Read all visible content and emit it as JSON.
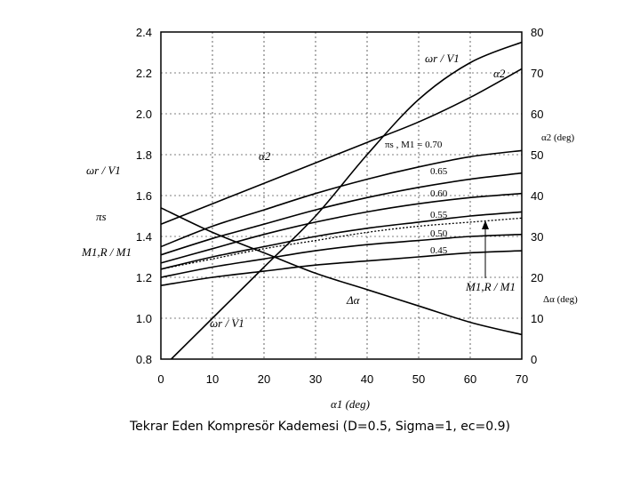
{
  "caption": "Tekrar Eden Kompresör Kademesi (D=0.5, Sigma=1, ec=0.9)",
  "chart_data": {
    "type": "line",
    "xlabel": "α1 (deg)",
    "x_ticks": [
      0,
      10,
      20,
      30,
      40,
      50,
      60,
      70
    ],
    "xlim": [
      0,
      70
    ],
    "left_axis": {
      "labels": [
        "ωr / V1",
        "πs",
        "M1,R / M1"
      ],
      "ticks": [
        "0.8",
        "1.0",
        "1.2",
        "1.4",
        "1.6",
        "1.8",
        "2.0",
        "2.2",
        "2.4"
      ],
      "lim": [
        0.8,
        2.4
      ]
    },
    "right_axis": {
      "ticks": [
        "0",
        "10",
        "20",
        "30",
        "40",
        "50",
        "60",
        "70",
        "80"
      ],
      "lim": [
        0,
        80
      ],
      "labels": [
        "α2 (deg)",
        "Δα (deg)"
      ]
    },
    "series": [
      {
        "name": "ωr / V1",
        "axis": "left",
        "x": [
          2,
          10,
          20,
          30,
          40,
          50,
          60,
          70
        ],
        "y": [
          0.8,
          1.0,
          1.25,
          1.5,
          1.8,
          2.07,
          2.25,
          2.35
        ]
      },
      {
        "name": "α2",
        "axis": "right",
        "x": [
          0,
          10,
          20,
          30,
          40,
          50,
          60,
          70
        ],
        "y": [
          33,
          38,
          43,
          48,
          53,
          58,
          64,
          71
        ]
      },
      {
        "name": "Δα",
        "axis": "right",
        "x": [
          0,
          10,
          20,
          30,
          40,
          50,
          60,
          70
        ],
        "y": [
          37,
          31,
          26,
          21,
          17,
          13,
          9,
          6
        ]
      },
      {
        "label": "0.70",
        "axis": "left",
        "x": [
          0,
          10,
          20,
          30,
          40,
          50,
          60,
          70
        ],
        "y": [
          1.35,
          1.45,
          1.53,
          1.61,
          1.68,
          1.74,
          1.79,
          1.82
        ]
      },
      {
        "label": "0.65",
        "axis": "left",
        "x": [
          0,
          10,
          20,
          30,
          40,
          50,
          60,
          70
        ],
        "y": [
          1.31,
          1.39,
          1.46,
          1.53,
          1.59,
          1.64,
          1.68,
          1.71
        ]
      },
      {
        "label": "0.60",
        "axis": "left",
        "x": [
          0,
          10,
          20,
          30,
          40,
          50,
          60,
          70
        ],
        "y": [
          1.27,
          1.34,
          1.41,
          1.47,
          1.52,
          1.56,
          1.59,
          1.61
        ]
      },
      {
        "label": "0.55",
        "axis": "left",
        "x": [
          0,
          10,
          20,
          30,
          40,
          50,
          60,
          70
        ],
        "y": [
          1.24,
          1.3,
          1.35,
          1.4,
          1.44,
          1.47,
          1.5,
          1.52
        ]
      },
      {
        "label": "0.50",
        "axis": "left",
        "x": [
          0,
          10,
          20,
          30,
          40,
          50,
          60,
          70
        ],
        "y": [
          1.2,
          1.25,
          1.29,
          1.33,
          1.36,
          1.38,
          1.4,
          1.41
        ]
      },
      {
        "label": "0.45",
        "axis": "left",
        "x": [
          0,
          10,
          20,
          30,
          40,
          50,
          60,
          70
        ],
        "y": [
          1.16,
          1.2,
          1.23,
          1.26,
          1.28,
          1.3,
          1.32,
          1.33
        ]
      },
      {
        "name": "M1,R / M1",
        "axis": "left",
        "style": "dotted",
        "x": [
          0,
          10,
          20,
          30,
          40,
          50,
          60,
          70
        ],
        "y": [
          1.24,
          1.29,
          1.34,
          1.38,
          1.42,
          1.45,
          1.47,
          1.49
        ]
      }
    ],
    "annotations": [
      "ωr / V1",
      "α2",
      "α2",
      "πs , M1 = 0.70",
      "0.65",
      "0.60",
      "0.55",
      "0.50",
      "0.45",
      "Δα",
      "ωr / V1",
      "M1,R / M1"
    ]
  }
}
